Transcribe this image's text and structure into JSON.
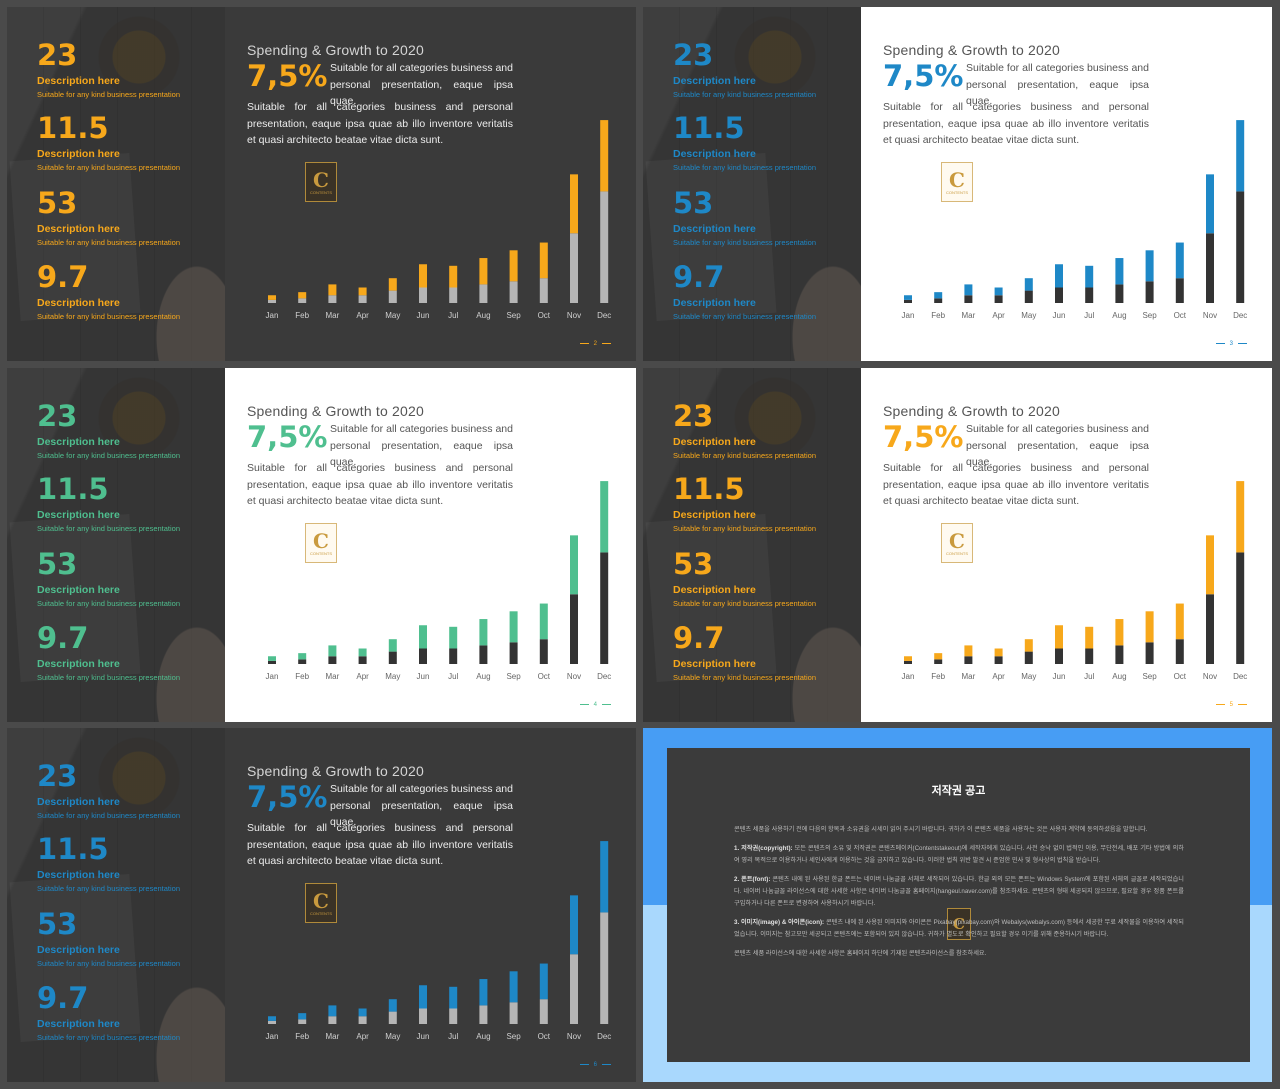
{
  "slides": [
    {
      "theme": "dark",
      "accent": "#f7a81b",
      "base": "#b5b5b5",
      "page": "2"
    },
    {
      "theme": "light",
      "accent": "#1e88c7",
      "base": "#333333",
      "page": "3"
    },
    {
      "theme": "light",
      "accent": "#4fbf8f",
      "base": "#333333",
      "page": "4"
    },
    {
      "theme": "light",
      "accent": "#f7a81b",
      "base": "#333333",
      "page": "5"
    },
    {
      "theme": "dark",
      "accent": "#1e88c7",
      "base": "#b5b5b5",
      "page": "6"
    }
  ],
  "stats": [
    {
      "num": "23",
      "desc": "Description here",
      "sub": "Suitable for any kind business presentation"
    },
    {
      "num": "11.5",
      "desc": "Description here",
      "sub": "Suitable for any kind business presentation"
    },
    {
      "num": "53",
      "desc": "Description here",
      "sub": "Suitable for any kind business presentation"
    },
    {
      "num": "9.7",
      "desc": "Description here",
      "sub": "Suitable for any kind business presentation"
    }
  ],
  "title": "Spending & Growth to 2020",
  "big_number": "7,5%",
  "short_text": "Suitable for all categories business and personal presentation, eaque ipsa quae.",
  "paragraph": "Suitable for all categories business and personal presentation, eaque ipsa quae ab illo inventore veritatis et quasi architecto beatae vitae dicta sunt.",
  "logo": {
    "letter": "C",
    "text": "CONTENTS"
  },
  "chart_data": {
    "type": "bar",
    "categories": [
      "Jan",
      "Feb",
      "Mar",
      "Apr",
      "May",
      "Jun",
      "Jul",
      "Aug",
      "Sep",
      "Oct",
      "Nov",
      "Dec"
    ],
    "series": [
      {
        "values": [
          2,
          3,
          5,
          5,
          8,
          10,
          10,
          12,
          14,
          16,
          45,
          72
        ]
      },
      {
        "values": [
          3,
          4,
          7,
          5,
          8,
          15,
          14,
          17,
          20,
          23,
          38,
          46
        ]
      }
    ],
    "ylim": [
      0,
      120
    ]
  },
  "notice": {
    "title": "저작권 공고",
    "intro": "콘텐츠 세품을 사용하기 전에 다음의 항목과 소유권을 시세이 읽어 주시기 바랍니다. 귀하가 이 콘텐츠 세품을 사용하는 것은 사용자 계약에 동의하셨음을 말합니다.",
    "p1_head": "1. 저작권(copyright):",
    "p1": "모든 콘텐츠의 소유 및 저작권은 콘텐츠메이커(Contentstakeout)에 세작자에게 있습니다. 사전 승낙 없이 법적인 이용, 무단전세, 배포 기타 방법에 의하여 영리 목적으로 이용하거나 세인사에게 이용하는 것을 금지하고 있습니다. 이러한 법칙 위반 발견 시 준엄한 민사 및 형사상의 법칙을 받습니다.",
    "p2_head": "2. 폰트(font):",
    "p2": "콘텐츠 내에 된 사용된 한글 폰트는 네이버 나눔글꼴 서체로 세작되어 있습니다. 한글 외의 모든 폰트는 Windows System에 포함된 서체의 글꼴로 세작되었습니다. 네이버 나눔글꼴 라이선스에 대한 사세한 사항은 네이버 나눔글꼴 홈페이지(hangeul.naver.com)를 참조하세요. 콘텐츠의 형태 세공되지 않으므로, 필요할 경우 정품 폰트를 구입하거나 다른 폰트로 변경하여 사용하시기 바랍니다.",
    "p3_head": "3. 이미지(image) & 아이콘(icon):",
    "p3": "콘텐츠 내에 된 사용된 이미지와 아이콘은 Pixabay(pixabay.com)와 Webalys(webalys.com) 등에서 세공한 무료 세작물을 이용하여 세작되었습니다. 이미지는 참고모만 세공되고 콘텐츠에는 포함되어 있지 않습니다. 귀하가 별도로 확인하고 필요할 경우 이기를 위해 준용하시기 바랍니다.",
    "outro": "콘텐츠 세품 라이선스에 대한 사세한 사항은 홈페이지 하단에 기재된 콘텐츠라이선스를 참조하세요."
  }
}
